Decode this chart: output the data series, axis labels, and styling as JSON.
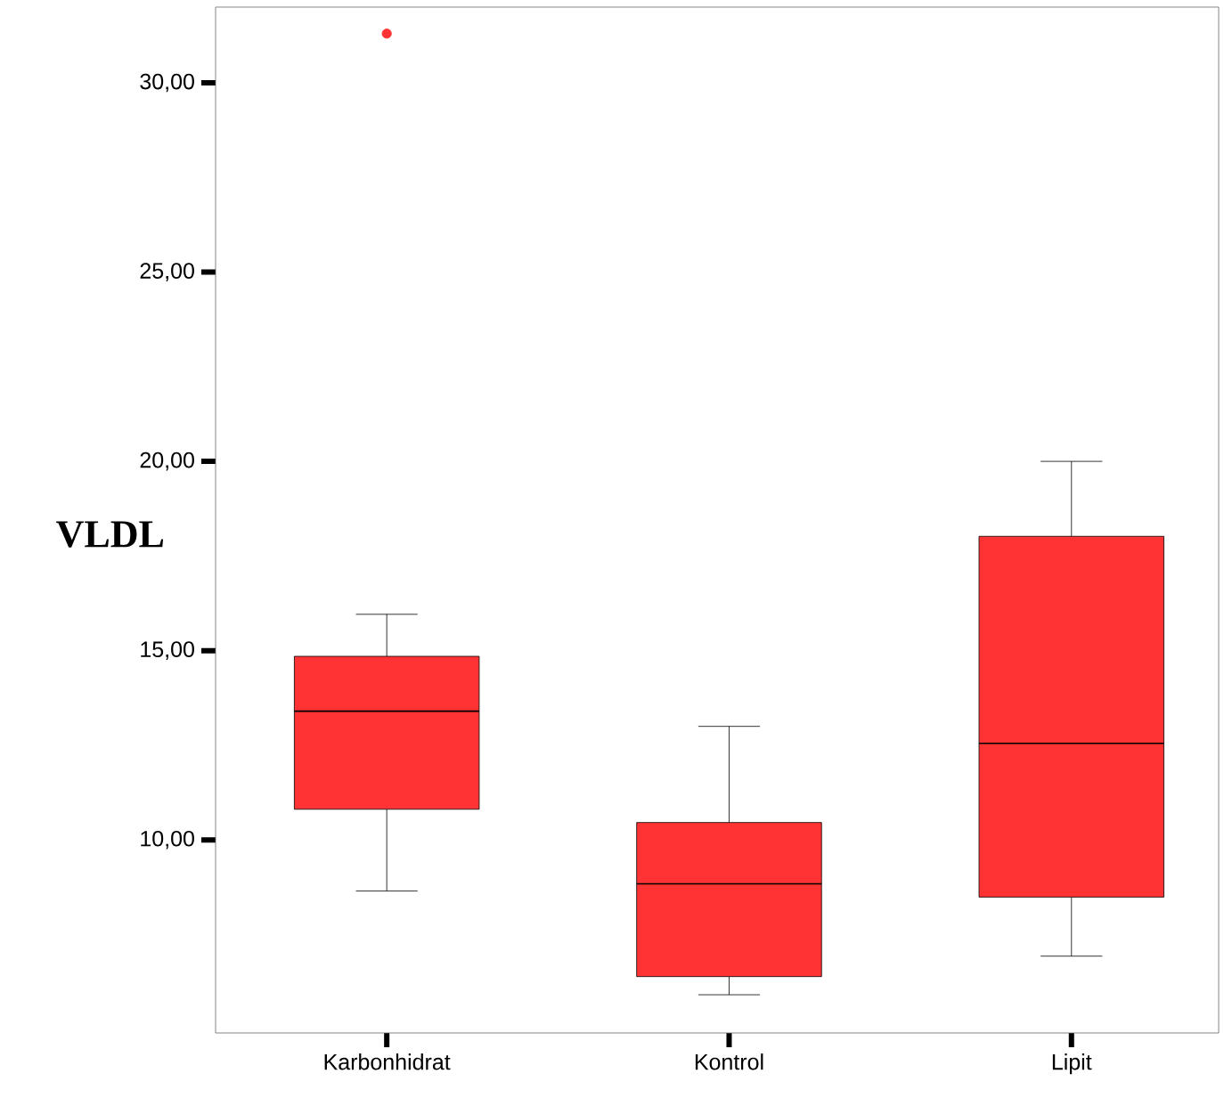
{
  "chart_data": {
    "type": "box",
    "ylabel": "VLDL",
    "categories": [
      "Karbonhidrat",
      "Kontrol",
      "Lipit"
    ],
    "color": "#ff3333",
    "boxes": [
      {
        "low": 8.65,
        "q1": 10.81,
        "median": 13.4,
        "q3": 14.85,
        "high": 15.96,
        "outliers": [
          31.3
        ]
      },
      {
        "low": 5.91,
        "q1": 6.39,
        "median": 8.84,
        "q3": 10.46,
        "high": 13.0
      },
      {
        "low": 6.93,
        "q1": 8.49,
        "median": 12.55,
        "q3": 18.02,
        "high": 20.0
      }
    ],
    "ylim": [
      4.9,
      32
    ],
    "yticks": [
      {
        "value": 10,
        "label": "10,00"
      },
      {
        "value": 15,
        "label": "15,00"
      },
      {
        "value": 20,
        "label": "20,00"
      },
      {
        "value": 25,
        "label": "25,00"
      },
      {
        "value": 30,
        "label": "30,00"
      }
    ]
  }
}
